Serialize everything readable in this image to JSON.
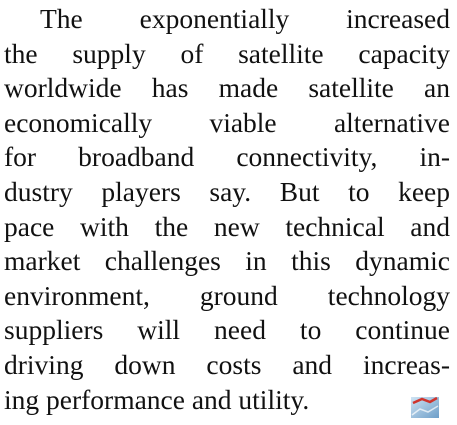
{
  "paragraph": {
    "lines": [
      "The exponentially increased",
      "the supply of satellite capacity",
      "worldwide has made satellite an",
      "economically viable alternative",
      "for broadband connectivity, in-",
      "dustry players say. But to keep",
      "pace with the new technical and",
      "market challenges in this dynamic",
      "environment, ground technology",
      "suppliers will need to continue",
      "driving down costs and increas-",
      "ing performance and utility."
    ]
  }
}
